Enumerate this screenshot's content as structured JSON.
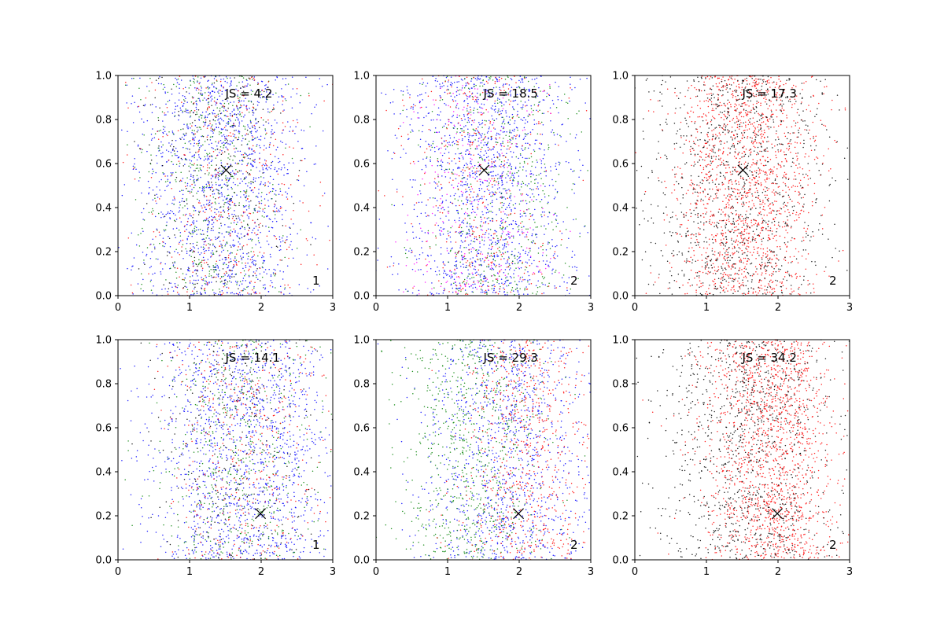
{
  "chart_data": [
    {
      "type": "scatter",
      "annotation": "JS = 4.2",
      "corner_label": "1",
      "xlim": [
        0,
        3
      ],
      "ylim": [
        0,
        1
      ],
      "xticks": [
        "0",
        "1",
        "2",
        "3"
      ],
      "yticks": [
        "0.0",
        "0.2",
        "0.4",
        "0.6",
        "0.8",
        "1.0"
      ],
      "marker": {
        "x": 1.51,
        "y": 0.57
      },
      "series": [
        {
          "color": "#0000ff",
          "weight": 0.55,
          "x_center": 1.45,
          "x_spread": 0.6
        },
        {
          "color": "#008000",
          "weight": 0.2,
          "x_center": 1.35,
          "x_spread": 0.5
        },
        {
          "color": "#ff0000",
          "weight": 0.15,
          "x_center": 1.5,
          "x_spread": 0.6
        },
        {
          "color": "#000000",
          "weight": 0.1,
          "x_center": 1.3,
          "x_spread": 0.5
        }
      ]
    },
    {
      "type": "scatter",
      "annotation": "JS = 18.5",
      "corner_label": "2",
      "xlim": [
        0,
        3
      ],
      "ylim": [
        0,
        1
      ],
      "xticks": [
        "0",
        "1",
        "2",
        "3"
      ],
      "yticks": [
        "0.0",
        "0.2",
        "0.4",
        "0.6",
        "0.8",
        "1.0"
      ],
      "marker": {
        "x": 1.51,
        "y": 0.57
      },
      "series": [
        {
          "color": "#0000ff",
          "weight": 0.55,
          "x_center": 1.55,
          "x_spread": 0.6
        },
        {
          "color": "#008000",
          "weight": 0.2,
          "x_center": 1.75,
          "x_spread": 0.55
        },
        {
          "color": "#ff0000",
          "weight": 0.15,
          "x_center": 1.5,
          "x_spread": 0.55
        },
        {
          "color": "#ff00ff",
          "weight": 0.1,
          "x_center": 1.4,
          "x_spread": 0.5
        }
      ]
    },
    {
      "type": "scatter",
      "annotation": "JS = 17.3",
      "corner_label": "2",
      "xlim": [
        0,
        3
      ],
      "ylim": [
        0,
        1
      ],
      "xticks": [
        "0",
        "1",
        "2",
        "3"
      ],
      "yticks": [
        "0.0",
        "0.2",
        "0.4",
        "0.6",
        "0.8",
        "1.0"
      ],
      "marker": {
        "x": 1.51,
        "y": 0.57
      },
      "series": [
        {
          "color": "#ff0000",
          "weight": 0.6,
          "x_center": 1.55,
          "x_spread": 0.5
        },
        {
          "color": "#000000",
          "weight": 0.4,
          "x_center": 1.4,
          "x_spread": 0.65
        }
      ]
    },
    {
      "type": "scatter",
      "annotation": "JS = 14.1",
      "corner_label": "1",
      "xlim": [
        0,
        3
      ],
      "ylim": [
        0,
        1
      ],
      "xticks": [
        "0",
        "1",
        "2",
        "3"
      ],
      "yticks": [
        "0.0",
        "0.2",
        "0.4",
        "0.6",
        "0.8",
        "1.0"
      ],
      "marker": {
        "x": 1.99,
        "y": 0.21
      },
      "series": [
        {
          "color": "#0000ff",
          "weight": 0.55,
          "x_center": 1.75,
          "x_spread": 0.65
        },
        {
          "color": "#008000",
          "weight": 0.2,
          "x_center": 1.7,
          "x_spread": 0.55
        },
        {
          "color": "#ff0000",
          "weight": 0.15,
          "x_center": 1.8,
          "x_spread": 0.6
        },
        {
          "color": "#000000",
          "weight": 0.1,
          "x_center": 1.65,
          "x_spread": 0.55
        }
      ]
    },
    {
      "type": "scatter",
      "annotation": "JS = 29.3",
      "corner_label": "2",
      "xlim": [
        0,
        3
      ],
      "ylim": [
        0,
        1
      ],
      "xticks": [
        "0",
        "1",
        "2",
        "3"
      ],
      "yticks": [
        "0.0",
        "0.2",
        "0.4",
        "0.6",
        "0.8",
        "1.0"
      ],
      "marker": {
        "x": 1.99,
        "y": 0.21
      },
      "series": [
        {
          "color": "#0000ff",
          "weight": 0.45,
          "x_center": 1.85,
          "x_spread": 0.6
        },
        {
          "color": "#008000",
          "weight": 0.3,
          "x_center": 1.35,
          "x_spread": 0.5
        },
        {
          "color": "#ff0000",
          "weight": 0.25,
          "x_center": 2.05,
          "x_spread": 0.45
        }
      ]
    },
    {
      "type": "scatter",
      "annotation": "JS = 34.2",
      "corner_label": "2",
      "xlim": [
        0,
        3
      ],
      "ylim": [
        0,
        1
      ],
      "xticks": [
        "0",
        "1",
        "2",
        "3"
      ],
      "yticks": [
        "0.0",
        "0.2",
        "0.4",
        "0.6",
        "0.8",
        "1.0"
      ],
      "marker": {
        "x": 1.99,
        "y": 0.21
      },
      "series": [
        {
          "color": "#ff0000",
          "weight": 0.6,
          "x_center": 1.9,
          "x_spread": 0.45
        },
        {
          "color": "#000000",
          "weight": 0.4,
          "x_center": 1.6,
          "x_spread": 0.6
        }
      ]
    }
  ]
}
